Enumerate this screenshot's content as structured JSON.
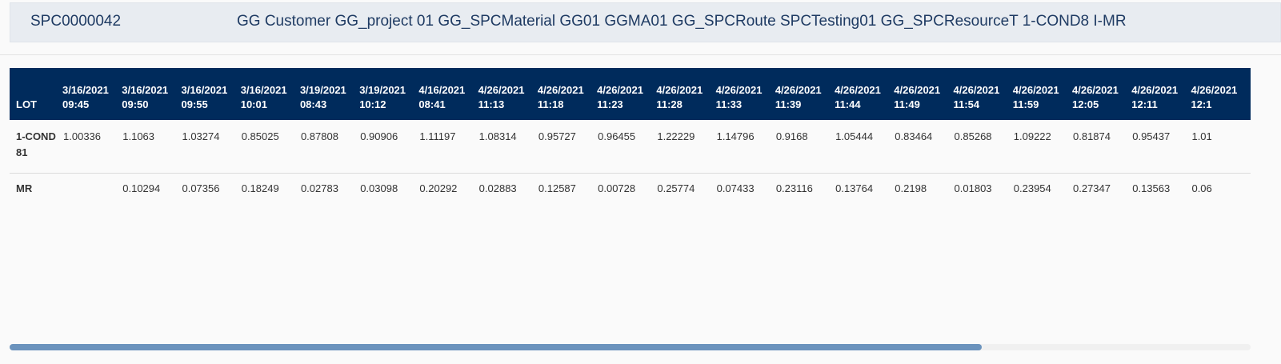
{
  "header": {
    "id": "SPC0000042",
    "description": "GG Customer GG_project 01 GG_SPCMaterial GG01 GGMA01 GG_SPCRoute SPCTesting01 GG_SPCResourceT 1-COND8 I-MR"
  },
  "table": {
    "lot_header": "LOT",
    "columns": [
      "3/16/2021\n09:45",
      "3/16/2021\n09:50",
      "3/16/2021\n09:55",
      "3/16/2021\n10:01",
      "3/19/2021\n08:43",
      "3/19/2021\n10:12",
      "4/16/2021\n08:41",
      "4/26/2021\n11:13",
      "4/26/2021\n11:18",
      "4/26/2021\n11:23",
      "4/26/2021\n11:28",
      "4/26/2021\n11:33",
      "4/26/2021\n11:39",
      "4/26/2021\n11:44",
      "4/26/2021\n11:49",
      "4/26/2021\n11:54",
      "4/26/2021\n11:59",
      "4/26/2021\n12:05",
      "4/26/2021\n12:11",
      "4/26/2021\n12:1"
    ],
    "rows": [
      {
        "label": "1-COND81",
        "values": [
          "1.00336",
          "1.1063",
          "1.03274",
          "0.85025",
          "0.87808",
          "0.90906",
          "1.11197",
          "1.08314",
          "0.95727",
          "0.96455",
          "1.22229",
          "1.14796",
          "0.9168",
          "1.05444",
          "0.83464",
          "0.85268",
          "1.09222",
          "0.81874",
          "0.95437",
          "1.01"
        ]
      },
      {
        "label": "MR",
        "values": [
          "",
          "0.10294",
          "0.07356",
          "0.18249",
          "0.02783",
          "0.03098",
          "0.20292",
          "0.02883",
          "0.12587",
          "0.00728",
          "0.25774",
          "0.07433",
          "0.23116",
          "0.13764",
          "0.2198",
          "0.01803",
          "0.23954",
          "0.27347",
          "0.13563",
          "0.06"
        ]
      }
    ]
  },
  "colors": {
    "header_background": "#002b5c",
    "title_bar_background": "#e8ecf1",
    "scrollbar_thumb": "#6b93bd"
  }
}
